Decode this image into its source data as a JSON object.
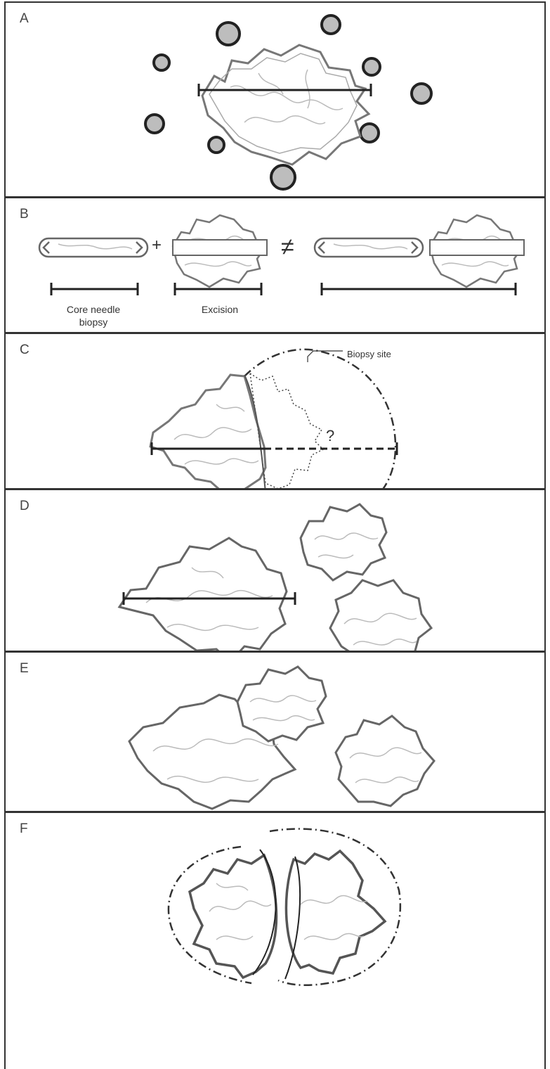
{
  "panels": [
    {
      "letter": "A"
    },
    {
      "letter": "B"
    },
    {
      "letter": "C"
    },
    {
      "letter": "D"
    },
    {
      "letter": "E"
    },
    {
      "letter": "F"
    }
  ],
  "labels": {
    "core_needle_line1": "Core needle",
    "core_needle_line2": "biopsy",
    "excision": "Excision",
    "plus": "+",
    "not_equal": "≠",
    "biopsy_site": "Biopsy site",
    "question": "?"
  }
}
